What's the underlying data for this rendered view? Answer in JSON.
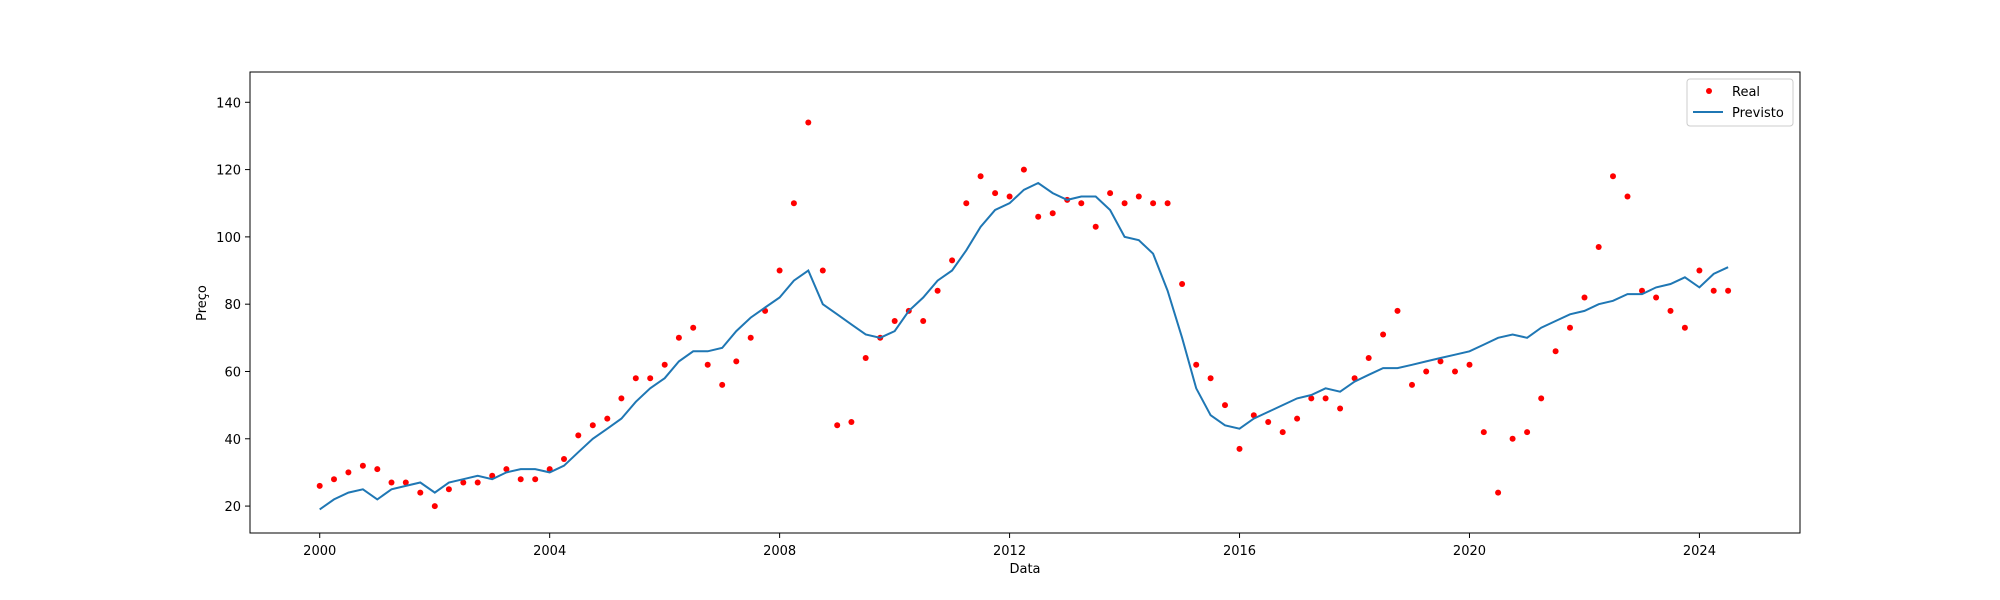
{
  "chart_data": {
    "type": "scatter",
    "title": "",
    "xlabel": "Data",
    "ylabel": "Preço",
    "x_ticks": [
      "2000",
      "2004",
      "2008",
      "2012",
      "2016",
      "2020",
      "2024"
    ],
    "y_ticks": [
      "20",
      "40",
      "60",
      "80",
      "100",
      "120",
      "140"
    ],
    "xlim": [
      "1998-10-15",
      "2025-10-01"
    ],
    "ylim": [
      12,
      149
    ],
    "grid": false,
    "legend": "top-right",
    "colors": {
      "real": "#ff0000",
      "previsto": "#1f77b4"
    },
    "series": [
      {
        "name": "Real",
        "kind": "points",
        "x": [
          "2000-01-01",
          "2000-04-01",
          "2000-07-01",
          "2000-10-01",
          "2001-01-01",
          "2001-04-01",
          "2001-07-01",
          "2001-10-01",
          "2002-01-01",
          "2002-04-01",
          "2002-07-01",
          "2002-10-01",
          "2003-01-01",
          "2003-04-01",
          "2003-07-01",
          "2003-10-01",
          "2004-01-01",
          "2004-04-01",
          "2004-07-01",
          "2004-10-01",
          "2005-01-01",
          "2005-04-01",
          "2005-07-01",
          "2005-10-01",
          "2006-01-01",
          "2006-04-01",
          "2006-07-01",
          "2006-10-01",
          "2007-01-01",
          "2007-04-01",
          "2007-07-01",
          "2007-10-01",
          "2008-01-01",
          "2008-04-01",
          "2008-07-01",
          "2008-10-01",
          "2009-01-01",
          "2009-04-01",
          "2009-07-01",
          "2009-10-01",
          "2010-01-01",
          "2010-04-01",
          "2010-07-01",
          "2010-10-01",
          "2011-01-01",
          "2011-04-01",
          "2011-07-01",
          "2011-10-01",
          "2012-01-01",
          "2012-04-01",
          "2012-07-01",
          "2012-10-01",
          "2013-01-01",
          "2013-04-01",
          "2013-07-01",
          "2013-10-01",
          "2014-01-01",
          "2014-04-01",
          "2014-07-01",
          "2014-10-01",
          "2015-01-01",
          "2015-04-01",
          "2015-07-01",
          "2015-10-01",
          "2016-01-01",
          "2016-04-01",
          "2016-07-01",
          "2016-10-01",
          "2017-01-01",
          "2017-04-01",
          "2017-07-01",
          "2017-10-01",
          "2018-01-01",
          "2018-04-01",
          "2018-07-01",
          "2018-10-01",
          "2019-01-01",
          "2019-04-01",
          "2019-07-01",
          "2019-10-01",
          "2020-01-01",
          "2020-04-01",
          "2020-07-01",
          "2020-10-01",
          "2021-01-01",
          "2021-04-01",
          "2021-07-01",
          "2021-10-01",
          "2022-01-01",
          "2022-04-01",
          "2022-07-01",
          "2022-10-01",
          "2023-01-01",
          "2023-04-01",
          "2023-07-01",
          "2023-10-01",
          "2024-01-01",
          "2024-04-01",
          "2024-07-01"
        ],
        "y": [
          26,
          28,
          30,
          32,
          31,
          27,
          27,
          24,
          20,
          25,
          27,
          27,
          29,
          31,
          28,
          28,
          31,
          34,
          41,
          44,
          46,
          52,
          58,
          58,
          62,
          70,
          73,
          62,
          56,
          63,
          70,
          78,
          90,
          110,
          134,
          90,
          44,
          45,
          64,
          70,
          75,
          78,
          75,
          84,
          93,
          110,
          118,
          113,
          112,
          120,
          106,
          107,
          111,
          110,
          103,
          113,
          110,
          112,
          110,
          110,
          86,
          62,
          58,
          50,
          37,
          47,
          45,
          42,
          46,
          52,
          52,
          49,
          58,
          64,
          71,
          78,
          56,
          60,
          63,
          60,
          62,
          42,
          24,
          40,
          42,
          52,
          66,
          73,
          82,
          97,
          118,
          112,
          84,
          82,
          78,
          73,
          90,
          84,
          84
        ]
      },
      {
        "name": "Previsto",
        "kind": "line",
        "x": [
          "2000-01-01",
          "2000-04-01",
          "2000-07-01",
          "2000-10-01",
          "2001-01-01",
          "2001-04-01",
          "2001-07-01",
          "2001-10-01",
          "2002-01-01",
          "2002-04-01",
          "2002-07-01",
          "2002-10-01",
          "2003-01-01",
          "2003-04-01",
          "2003-07-01",
          "2003-10-01",
          "2004-01-01",
          "2004-04-01",
          "2004-07-01",
          "2004-10-01",
          "2005-01-01",
          "2005-04-01",
          "2005-07-01",
          "2005-10-01",
          "2006-01-01",
          "2006-04-01",
          "2006-07-01",
          "2006-10-01",
          "2007-01-01",
          "2007-04-01",
          "2007-07-01",
          "2007-10-01",
          "2008-01-01",
          "2008-04-01",
          "2008-07-01",
          "2008-10-01",
          "2009-01-01",
          "2009-04-01",
          "2009-07-01",
          "2009-10-01",
          "2010-01-01",
          "2010-04-01",
          "2010-07-01",
          "2010-10-01",
          "2011-01-01",
          "2011-04-01",
          "2011-07-01",
          "2011-10-01",
          "2012-01-01",
          "2012-04-01",
          "2012-07-01",
          "2012-10-01",
          "2013-01-01",
          "2013-04-01",
          "2013-07-01",
          "2013-10-01",
          "2014-01-01",
          "2014-04-01",
          "2014-07-01",
          "2014-10-01",
          "2015-01-01",
          "2015-04-01",
          "2015-07-01",
          "2015-10-01",
          "2016-01-01",
          "2016-04-01",
          "2016-07-01",
          "2016-10-01",
          "2017-01-01",
          "2017-04-01",
          "2017-07-01",
          "2017-10-01",
          "2018-01-01",
          "2018-04-01",
          "2018-07-01",
          "2018-10-01",
          "2019-01-01",
          "2019-04-01",
          "2019-07-01",
          "2019-10-01",
          "2020-01-01",
          "2020-04-01",
          "2020-07-01",
          "2020-10-01",
          "2021-01-01",
          "2021-04-01",
          "2021-07-01",
          "2021-10-01",
          "2022-01-01",
          "2022-04-01",
          "2022-07-01",
          "2022-10-01",
          "2023-01-01",
          "2023-04-01",
          "2023-07-01",
          "2023-10-01",
          "2024-01-01",
          "2024-04-01",
          "2024-07-01"
        ],
        "y": [
          19,
          22,
          24,
          25,
          22,
          25,
          26,
          27,
          24,
          27,
          28,
          29,
          28,
          30,
          31,
          31,
          30,
          32,
          36,
          40,
          43,
          46,
          51,
          55,
          58,
          63,
          66,
          66,
          67,
          72,
          76,
          79,
          82,
          87,
          90,
          80,
          77,
          74,
          71,
          70,
          72,
          78,
          82,
          87,
          90,
          96,
          103,
          108,
          110,
          114,
          116,
          113,
          111,
          112,
          112,
          108,
          100,
          99,
          95,
          84,
          70,
          55,
          47,
          44,
          43,
          46,
          48,
          50,
          52,
          53,
          55,
          54,
          57,
          59,
          61,
          61,
          62,
          63,
          64,
          65,
          66,
          68,
          70,
          71,
          70,
          73,
          75,
          77,
          78,
          80,
          81,
          83,
          83,
          85,
          86,
          88,
          85,
          89,
          91
        ]
      }
    ]
  }
}
